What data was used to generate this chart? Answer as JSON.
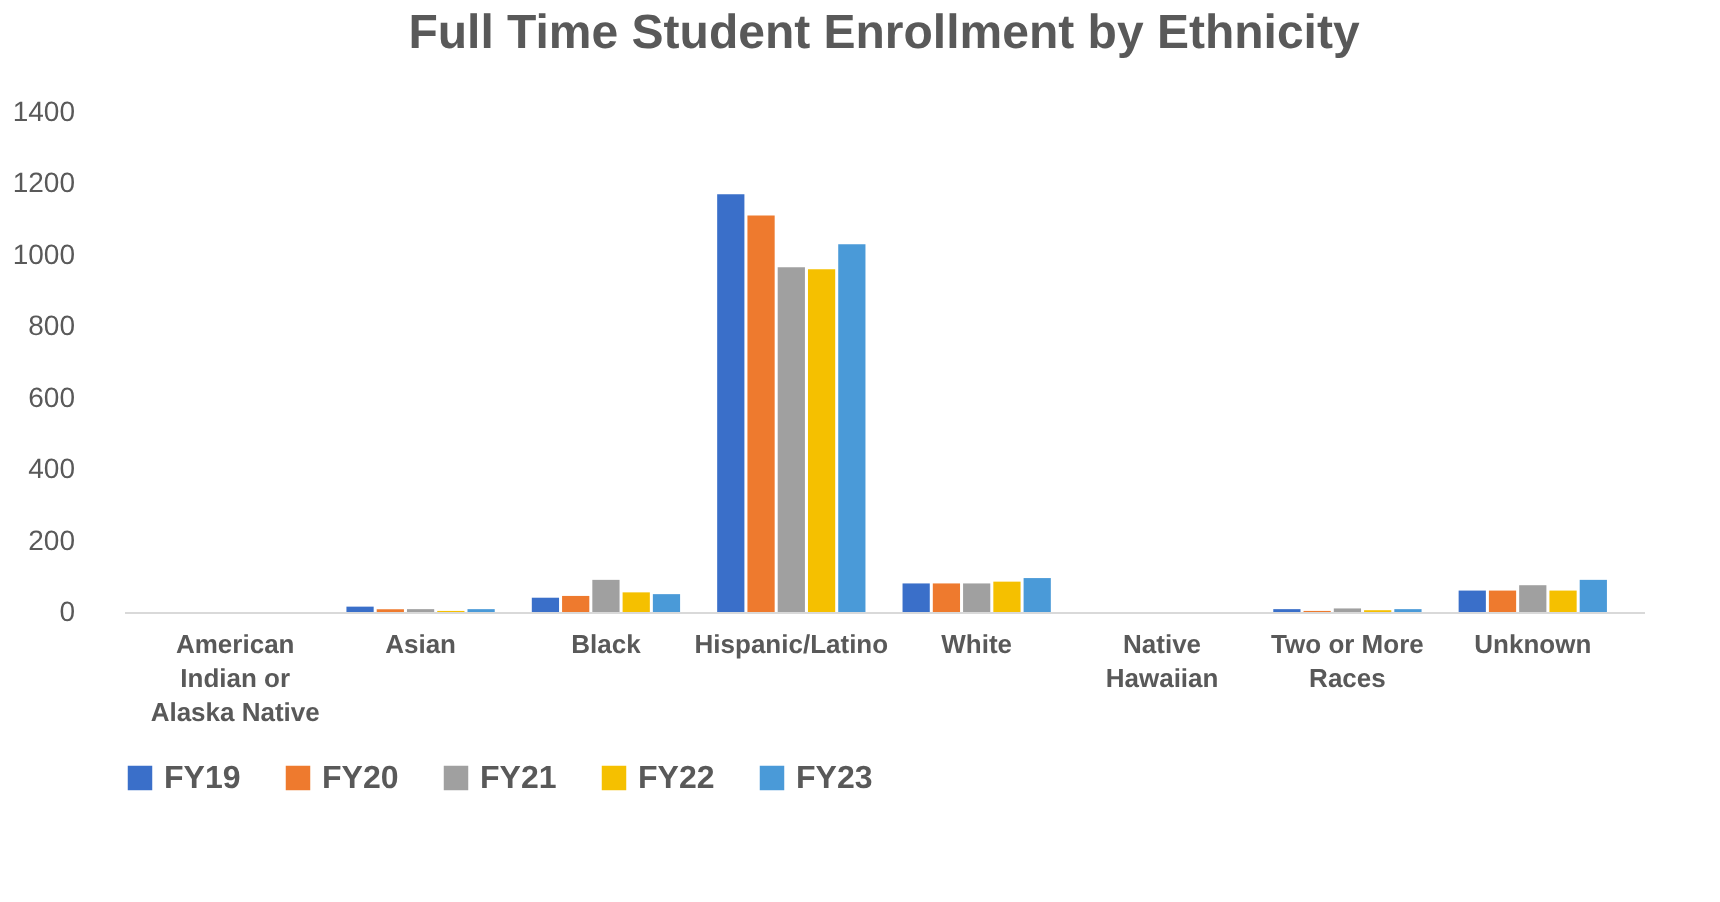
{
  "chart_data": {
    "type": "bar",
    "title": "Full Time Student Enrollment by Ethnicity",
    "categories": [
      "American Indian or Alaska Native",
      "Asian",
      "Black",
      "Hispanic/Latino",
      "White",
      "Native Hawaiian",
      "Two or More Races",
      "Unknown"
    ],
    "series": [
      {
        "name": "FY19",
        "color": "#3a6fc9",
        "values": [
          0,
          15,
          40,
          1170,
          80,
          0,
          8,
          60
        ]
      },
      {
        "name": "FY20",
        "color": "#ee7a2e",
        "values": [
          0,
          8,
          45,
          1110,
          80,
          0,
          3,
          60
        ]
      },
      {
        "name": "FY21",
        "color": "#a0a0a0",
        "values": [
          0,
          8,
          90,
          965,
          80,
          0,
          10,
          75
        ]
      },
      {
        "name": "FY22",
        "color": "#f5c000",
        "values": [
          0,
          3,
          55,
          960,
          85,
          0,
          5,
          60
        ]
      },
      {
        "name": "FY23",
        "color": "#4a9ad8",
        "values": [
          0,
          8,
          50,
          1030,
          95,
          0,
          8,
          90
        ]
      }
    ],
    "ylim": [
      0,
      1400
    ],
    "yticks": [
      0,
      200,
      400,
      600,
      800,
      1000,
      1200,
      1400
    ],
    "grid": false,
    "legend": "bottom"
  }
}
